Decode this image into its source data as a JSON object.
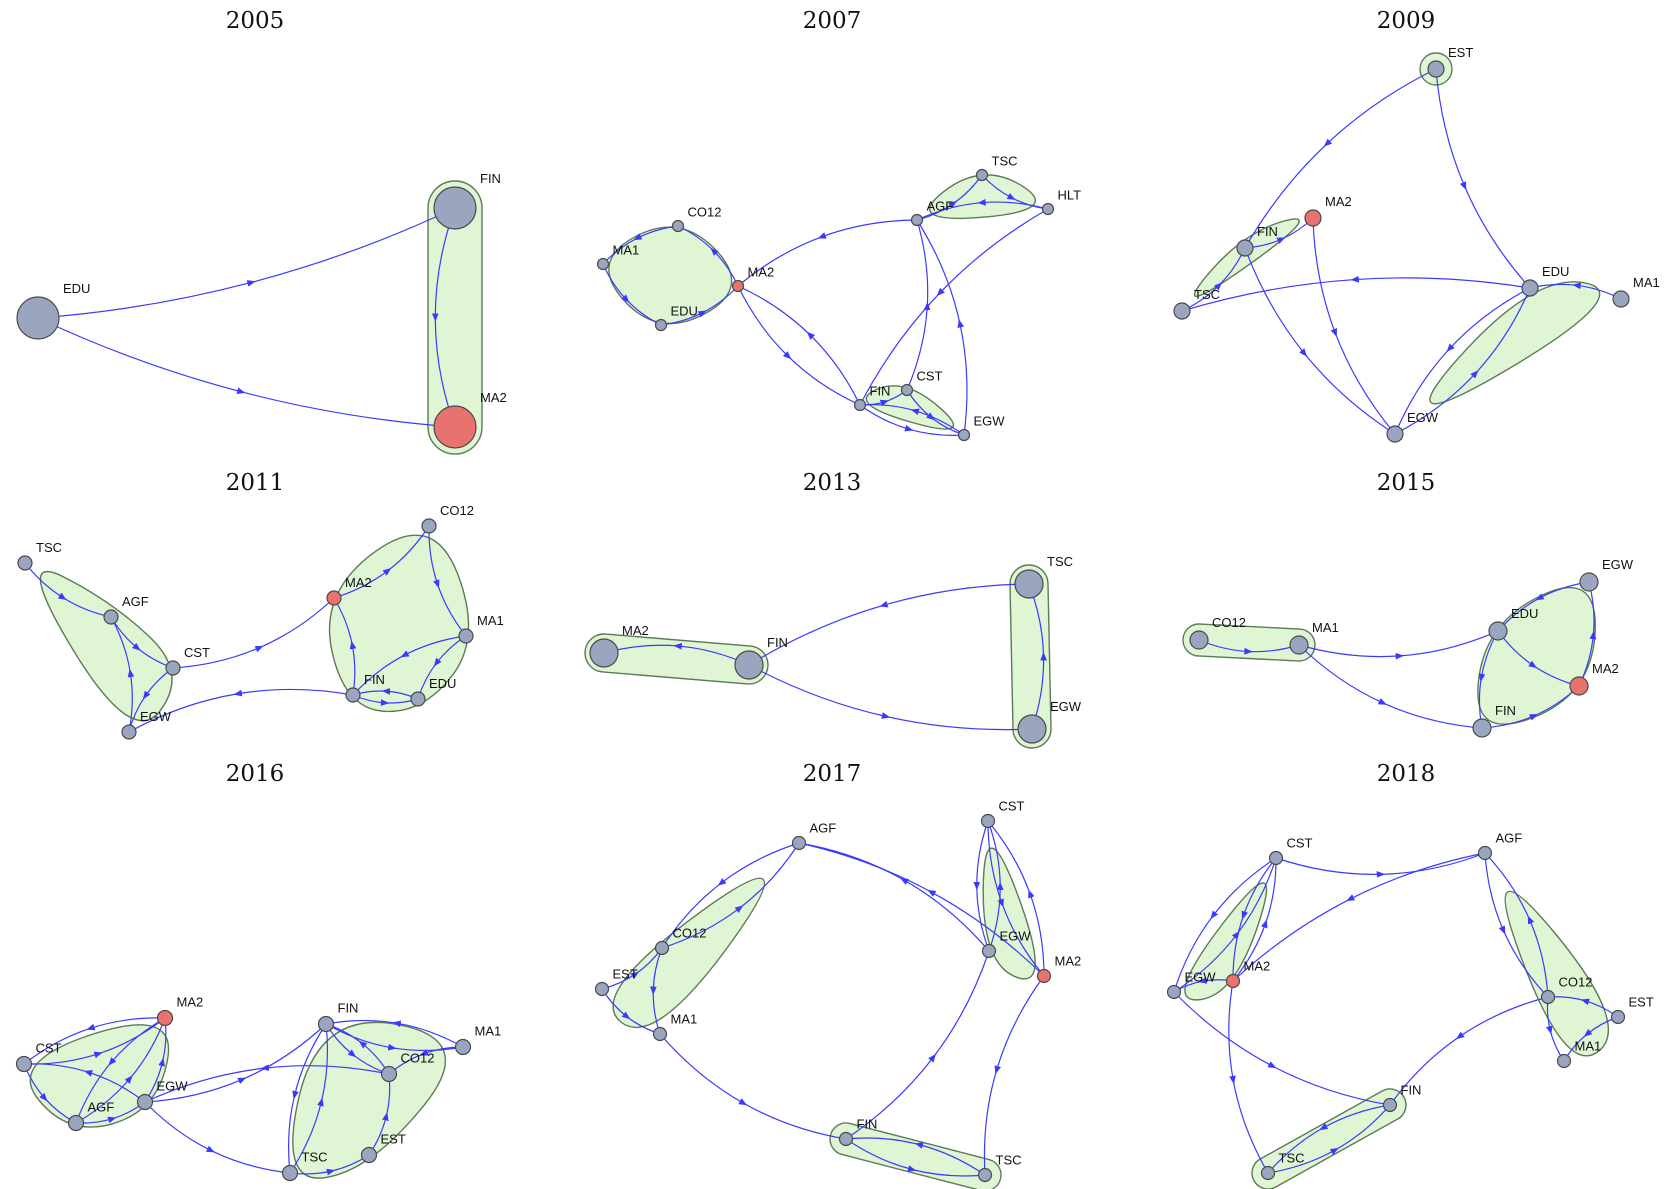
{
  "colors": {
    "node": "#9aa5c0",
    "highlight": "#e8736e",
    "edge": "#3a3aff",
    "hull": "#dff5d3"
  },
  "panels": [
    {
      "title": "2005",
      "nodes": [
        {
          "id": "EDU",
          "label": "EDU"
        },
        {
          "id": "FIN",
          "label": "FIN"
        },
        {
          "id": "MA2",
          "label": "MA2",
          "hl": true
        }
      ],
      "edges": [
        [
          "EDU",
          "FIN"
        ],
        [
          "EDU",
          "MA2"
        ],
        [
          "FIN",
          "MA2"
        ]
      ],
      "clusters": [
        [
          "FIN",
          "MA2"
        ]
      ]
    },
    {
      "title": "2007",
      "nodes": [
        {
          "id": "CO12",
          "label": "CO12"
        },
        {
          "id": "MA1",
          "label": "MA1"
        },
        {
          "id": "EDU",
          "label": "EDU"
        },
        {
          "id": "MA2",
          "label": "MA2",
          "hl": true
        },
        {
          "id": "TSC",
          "label": "TSC"
        },
        {
          "id": "AGF",
          "label": "AGF"
        },
        {
          "id": "HLT",
          "label": "HLT"
        },
        {
          "id": "FIN",
          "label": "FIN"
        },
        {
          "id": "CST",
          "label": "CST"
        },
        {
          "id": "EGW",
          "label": "EGW"
        }
      ],
      "edges": [
        [
          "CO12",
          "MA1"
        ],
        [
          "MA1",
          "EDU"
        ],
        [
          "EDU",
          "MA2"
        ],
        [
          "MA2",
          "CO12"
        ],
        [
          "AGF",
          "MA2"
        ],
        [
          "AGF",
          "TSC"
        ],
        [
          "TSC",
          "HLT"
        ],
        [
          "HLT",
          "AGF"
        ],
        [
          "MA2",
          "FIN"
        ],
        [
          "FIN",
          "MA2"
        ],
        [
          "FIN",
          "CST"
        ],
        [
          "CST",
          "EGW"
        ],
        [
          "EGW",
          "FIN"
        ],
        [
          "FIN",
          "EGW"
        ],
        [
          "EGW",
          "AGF"
        ],
        [
          "HLT",
          "FIN"
        ],
        [
          "CST",
          "AGF"
        ]
      ],
      "clusters": [
        [
          "CO12",
          "MA1",
          "EDU",
          "MA2"
        ],
        [
          "TSC",
          "AGF",
          "HLT"
        ],
        [
          "FIN",
          "CST",
          "EGW"
        ]
      ]
    },
    {
      "title": "2009",
      "nodes": [
        {
          "id": "EST",
          "label": "EST"
        },
        {
          "id": "MA2",
          "label": "MA2",
          "hl": true
        },
        {
          "id": "FIN",
          "label": "FIN"
        },
        {
          "id": "TSC",
          "label": "TSC"
        },
        {
          "id": "EDU",
          "label": "EDU"
        },
        {
          "id": "MA1",
          "label": "MA1"
        },
        {
          "id": "EGW",
          "label": "EGW"
        }
      ],
      "edges": [
        [
          "EST",
          "FIN"
        ],
        [
          "EST",
          "EDU"
        ],
        [
          "TSC",
          "FIN"
        ],
        [
          "FIN",
          "MA2"
        ],
        [
          "FIN",
          "EGW"
        ],
        [
          "MA2",
          "EGW"
        ],
        [
          "EDU",
          "TSC"
        ],
        [
          "MA1",
          "EDU"
        ],
        [
          "EGW",
          "EDU"
        ],
        [
          "EDU",
          "EGW"
        ]
      ],
      "clusters": [
        [
          "EST"
        ],
        [
          "MA2",
          "FIN",
          "TSC"
        ],
        [
          "EDU",
          "MA1",
          "EGW"
        ]
      ]
    },
    {
      "title": "2011",
      "nodes": [
        {
          "id": "TSC",
          "label": "TSC"
        },
        {
          "id": "AGF",
          "label": "AGF"
        },
        {
          "id": "CST",
          "label": "CST"
        },
        {
          "id": "EGW",
          "label": "EGW"
        },
        {
          "id": "CO12",
          "label": "CO12"
        },
        {
          "id": "MA2",
          "label": "MA2",
          "hl": true
        },
        {
          "id": "MA1",
          "label": "MA1"
        },
        {
          "id": "FIN",
          "label": "FIN"
        },
        {
          "id": "EDU",
          "label": "EDU"
        }
      ],
      "edges": [
        [
          "TSC",
          "AGF"
        ],
        [
          "AGF",
          "CST"
        ],
        [
          "EGW",
          "AGF"
        ],
        [
          "CST",
          "EGW"
        ],
        [
          "CST",
          "MA2"
        ],
        [
          "FIN",
          "EGW"
        ],
        [
          "MA2",
          "CO12"
        ],
        [
          "CO12",
          "MA1"
        ],
        [
          "MA1",
          "FIN"
        ],
        [
          "FIN",
          "MA2"
        ],
        [
          "EDU",
          "FIN"
        ],
        [
          "MA1",
          "EDU"
        ],
        [
          "FIN",
          "EDU"
        ]
      ],
      "clusters": [
        [
          "TSC",
          "AGF",
          "CST",
          "EGW"
        ],
        [
          "CO12",
          "MA2",
          "MA1",
          "FIN",
          "EDU"
        ]
      ]
    },
    {
      "title": "2013",
      "nodes": [
        {
          "id": "MA2",
          "label": "MA2"
        },
        {
          "id": "FIN",
          "label": "FIN"
        },
        {
          "id": "TSC",
          "label": "TSC"
        },
        {
          "id": "EGW",
          "label": "EGW"
        }
      ],
      "edges": [
        [
          "FIN",
          "MA2"
        ],
        [
          "TSC",
          "FIN"
        ],
        [
          "FIN",
          "EGW"
        ],
        [
          "EGW",
          "TSC"
        ]
      ],
      "clusters": [
        [
          "MA2",
          "FIN"
        ],
        [
          "TSC",
          "EGW"
        ]
      ]
    },
    {
      "title": "2015",
      "nodes": [
        {
          "id": "CO12",
          "label": "CO12"
        },
        {
          "id": "MA1",
          "label": "MA1"
        },
        {
          "id": "EGW",
          "label": "EGW"
        },
        {
          "id": "EDU",
          "label": "EDU"
        },
        {
          "id": "MA2",
          "label": "MA2",
          "hl": true
        },
        {
          "id": "FIN",
          "label": "FIN"
        }
      ],
      "edges": [
        [
          "CO12",
          "MA1"
        ],
        [
          "MA1",
          "EDU"
        ],
        [
          "MA1",
          "FIN"
        ],
        [
          "EGW",
          "EDU"
        ],
        [
          "EDU",
          "MA2"
        ],
        [
          "MA2",
          "EGW"
        ],
        [
          "EDU",
          "FIN"
        ],
        [
          "FIN",
          "MA2"
        ]
      ],
      "clusters": [
        [
          "CO12",
          "MA1"
        ],
        [
          "EGW",
          "EDU",
          "MA2",
          "FIN"
        ]
      ]
    },
    {
      "title": "2016",
      "nodes": [
        {
          "id": "MA2",
          "label": "MA2",
          "hl": true
        },
        {
          "id": "CST",
          "label": "CST"
        },
        {
          "id": "EGW",
          "label": "EGW"
        },
        {
          "id": "AGF",
          "label": "AGF"
        },
        {
          "id": "FIN",
          "label": "FIN"
        },
        {
          "id": "MA1",
          "label": "MA1"
        },
        {
          "id": "CO12",
          "label": "CO12"
        },
        {
          "id": "EST",
          "label": "EST"
        },
        {
          "id": "TSC",
          "label": "TSC"
        }
      ],
      "edges": [
        [
          "CST",
          "MA2"
        ],
        [
          "MA2",
          "CST"
        ],
        [
          "AGF",
          "MA2"
        ],
        [
          "MA2",
          "AGF"
        ],
        [
          "EGW",
          "MA2"
        ],
        [
          "EGW",
          "CST"
        ],
        [
          "CST",
          "AGF"
        ],
        [
          "AGF",
          "EGW"
        ],
        [
          "EGW",
          "FIN"
        ],
        [
          "CO12",
          "EGW"
        ],
        [
          "FIN",
          "MA1"
        ],
        [
          "MA1",
          "FIN"
        ],
        [
          "FIN",
          "CO12"
        ],
        [
          "CO12",
          "FIN"
        ],
        [
          "FIN",
          "TSC"
        ],
        [
          "TSC",
          "FIN"
        ],
        [
          "TSC",
          "EST"
        ],
        [
          "EST",
          "CO12"
        ],
        [
          "MA1",
          "CO12"
        ],
        [
          "EGW",
          "TSC"
        ]
      ],
      "clusters": [
        [
          "MA2",
          "CST",
          "EGW",
          "AGF"
        ],
        [
          "FIN",
          "MA1",
          "CO12",
          "EST",
          "TSC"
        ]
      ]
    },
    {
      "title": "2017",
      "nodes": [
        {
          "id": "AGF",
          "label": "AGF"
        },
        {
          "id": "CO12",
          "label": "CO12"
        },
        {
          "id": "EST",
          "label": "EST"
        },
        {
          "id": "MA1",
          "label": "MA1"
        },
        {
          "id": "CST",
          "label": "CST"
        },
        {
          "id": "EGW",
          "label": "EGW"
        },
        {
          "id": "MA2",
          "label": "MA2",
          "hl": true
        },
        {
          "id": "FIN",
          "label": "FIN"
        },
        {
          "id": "TSC",
          "label": "TSC"
        }
      ],
      "edges": [
        [
          "CO12",
          "AGF"
        ],
        [
          "AGF",
          "CO12"
        ],
        [
          "EST",
          "CO12"
        ],
        [
          "CO12",
          "MA1"
        ],
        [
          "EST",
          "MA1"
        ],
        [
          "EGW",
          "AGF"
        ],
        [
          "MA2",
          "AGF"
        ],
        [
          "CST",
          "EGW"
        ],
        [
          "EGW",
          "CST"
        ],
        [
          "CST",
          "MA2"
        ],
        [
          "MA2",
          "CST"
        ],
        [
          "MA1",
          "FIN"
        ],
        [
          "FIN",
          "EGW"
        ],
        [
          "FIN",
          "TSC"
        ],
        [
          "TSC",
          "FIN"
        ],
        [
          "MA2",
          "TSC"
        ]
      ],
      "clusters": [
        [
          "AGF",
          "CO12",
          "EST",
          "MA1"
        ],
        [
          "CST",
          "EGW",
          "MA2"
        ],
        [
          "FIN",
          "TSC"
        ]
      ]
    },
    {
      "title": "2018",
      "nodes": [
        {
          "id": "CST",
          "label": "CST"
        },
        {
          "id": "EGW",
          "label": "EGW"
        },
        {
          "id": "MA2",
          "label": "MA2",
          "hl": true
        },
        {
          "id": "AGF",
          "label": "AGF"
        },
        {
          "id": "CO12",
          "label": "CO12"
        },
        {
          "id": "EST",
          "label": "EST"
        },
        {
          "id": "MA1",
          "label": "MA1"
        },
        {
          "id": "FIN",
          "label": "FIN"
        },
        {
          "id": "TSC",
          "label": "TSC"
        }
      ],
      "edges": [
        [
          "CST",
          "EGW"
        ],
        [
          "MA2",
          "CST"
        ],
        [
          "CST",
          "MA2"
        ],
        [
          "EGW",
          "CST"
        ],
        [
          "MA2",
          "EGW"
        ],
        [
          "CST",
          "AGF"
        ],
        [
          "AGF",
          "MA2"
        ],
        [
          "AGF",
          "CO12"
        ],
        [
          "CO12",
          "AGF"
        ],
        [
          "EST",
          "CO12"
        ],
        [
          "CO12",
          "MA1"
        ],
        [
          "EST",
          "MA1"
        ],
        [
          "CO12",
          "FIN"
        ],
        [
          "FIN",
          "TSC"
        ],
        [
          "TSC",
          "FIN"
        ],
        [
          "EGW",
          "FIN"
        ],
        [
          "MA2",
          "TSC"
        ]
      ],
      "clusters": [
        [
          "CST",
          "EGW",
          "MA2"
        ],
        [
          "AGF",
          "CO12",
          "EST",
          "MA1"
        ],
        [
          "FIN",
          "TSC"
        ]
      ]
    }
  ]
}
